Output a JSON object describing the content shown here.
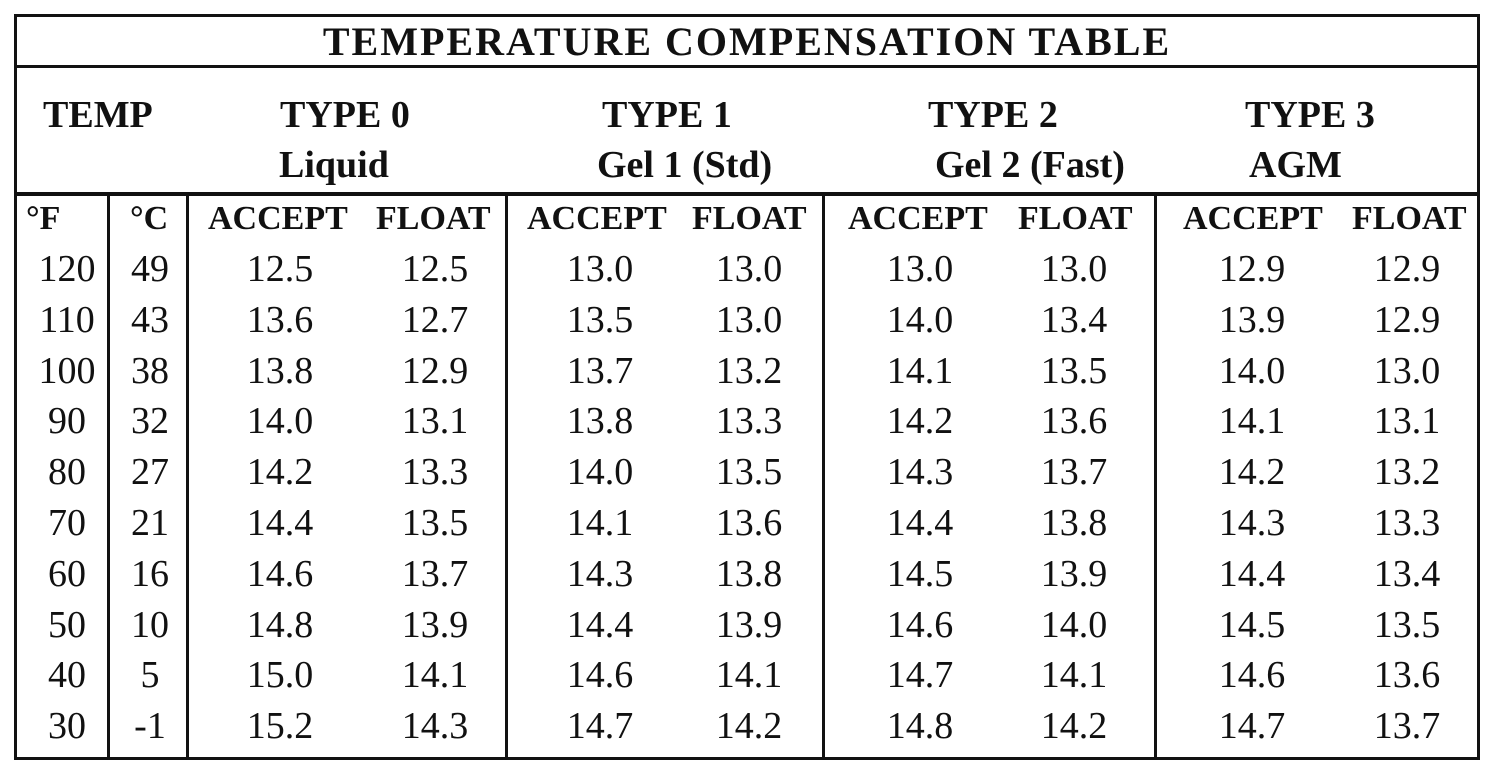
{
  "title": "TEMPERATURE COMPENSATION TABLE",
  "header": {
    "temp": "TEMP",
    "types": [
      {
        "type": "TYPE 0",
        "name": "Liquid"
      },
      {
        "type": "TYPE 1",
        "name": "Gel 1 (Std)"
      },
      {
        "type": "TYPE 2",
        "name": "Gel 2 (Fast)"
      },
      {
        "type": "TYPE 3",
        "name": "AGM"
      }
    ]
  },
  "subheaders": {
    "f": "°F",
    "c": "°C",
    "accept": "ACCEPT",
    "float": "FLOAT"
  },
  "rows": [
    {
      "f": "120",
      "c": "49",
      "vals": [
        "12.5",
        "12.5",
        "13.0",
        "13.0",
        "13.0",
        "13.0",
        "12.9",
        "12.9"
      ]
    },
    {
      "f": "110",
      "c": "43",
      "vals": [
        "13.6",
        "12.7",
        "13.5",
        "13.0",
        "14.0",
        "13.4",
        "13.9",
        "12.9"
      ]
    },
    {
      "f": "100",
      "c": "38",
      "vals": [
        "13.8",
        "12.9",
        "13.7",
        "13.2",
        "14.1",
        "13.5",
        "14.0",
        "13.0"
      ]
    },
    {
      "f": "90",
      "c": "32",
      "vals": [
        "14.0",
        "13.1",
        "13.8",
        "13.3",
        "14.2",
        "13.6",
        "14.1",
        "13.1"
      ]
    },
    {
      "f": "80",
      "c": "27",
      "vals": [
        "14.2",
        "13.3",
        "14.0",
        "13.5",
        "14.3",
        "13.7",
        "14.2",
        "13.2"
      ]
    },
    {
      "f": "70",
      "c": "21",
      "vals": [
        "14.4",
        "13.5",
        "14.1",
        "13.6",
        "14.4",
        "13.8",
        "14.3",
        "13.3"
      ]
    },
    {
      "f": "60",
      "c": "16",
      "vals": [
        "14.6",
        "13.7",
        "14.3",
        "13.8",
        "14.5",
        "13.9",
        "14.4",
        "13.4"
      ]
    },
    {
      "f": "50",
      "c": "10",
      "vals": [
        "14.8",
        "13.9",
        "14.4",
        "13.9",
        "14.6",
        "14.0",
        "14.5",
        "13.5"
      ]
    },
    {
      "f": "40",
      "c": "5",
      "vals": [
        "15.0",
        "14.1",
        "14.6",
        "14.1",
        "14.7",
        "14.1",
        "14.6",
        "13.6"
      ]
    },
    {
      "f": "30",
      "c": "-1",
      "vals": [
        "15.2",
        "14.3",
        "14.7",
        "14.2",
        "14.8",
        "14.2",
        "14.7",
        "13.7"
      ]
    }
  ]
}
